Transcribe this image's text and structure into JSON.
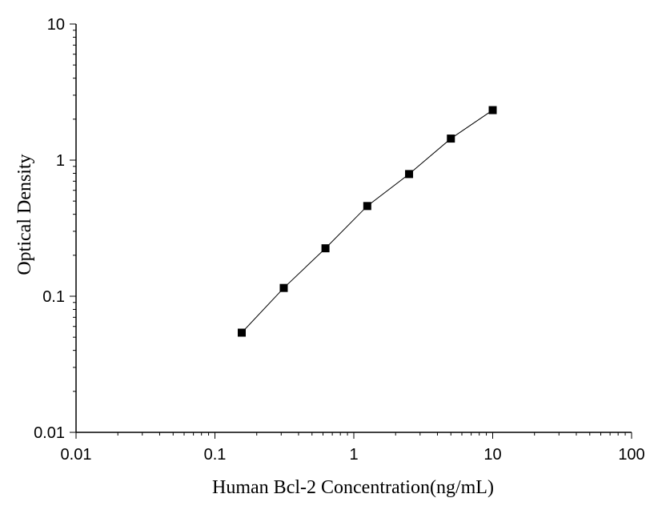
{
  "chart_data": {
    "type": "scatter",
    "title": "",
    "xlabel": "Human Bcl-2 Concentration(ng/mL)",
    "ylabel": "Optical Density",
    "x_scale": "log",
    "y_scale": "log",
    "xlim": [
      0.01,
      100
    ],
    "ylim": [
      0.01,
      10
    ],
    "x_ticks": [
      {
        "value": 0.01,
        "label": "0.01"
      },
      {
        "value": 0.1,
        "label": "0.1"
      },
      {
        "value": 1,
        "label": "1"
      },
      {
        "value": 10,
        "label": "10"
      },
      {
        "value": 100,
        "label": "100"
      }
    ],
    "y_ticks": [
      {
        "value": 0.01,
        "label": "0.01"
      },
      {
        "value": 0.1,
        "label": "0.1"
      },
      {
        "value": 1,
        "label": "1"
      },
      {
        "value": 10,
        "label": "10"
      }
    ],
    "grid": false,
    "legend": "none",
    "series": [
      {
        "marker": "square",
        "connected_by_line": true,
        "color": "#000000",
        "x": [
          0.156,
          0.313,
          0.625,
          1.25,
          2.5,
          5,
          10
        ],
        "y": [
          0.054,
          0.115,
          0.225,
          0.46,
          0.79,
          1.44,
          2.33
        ]
      }
    ]
  }
}
